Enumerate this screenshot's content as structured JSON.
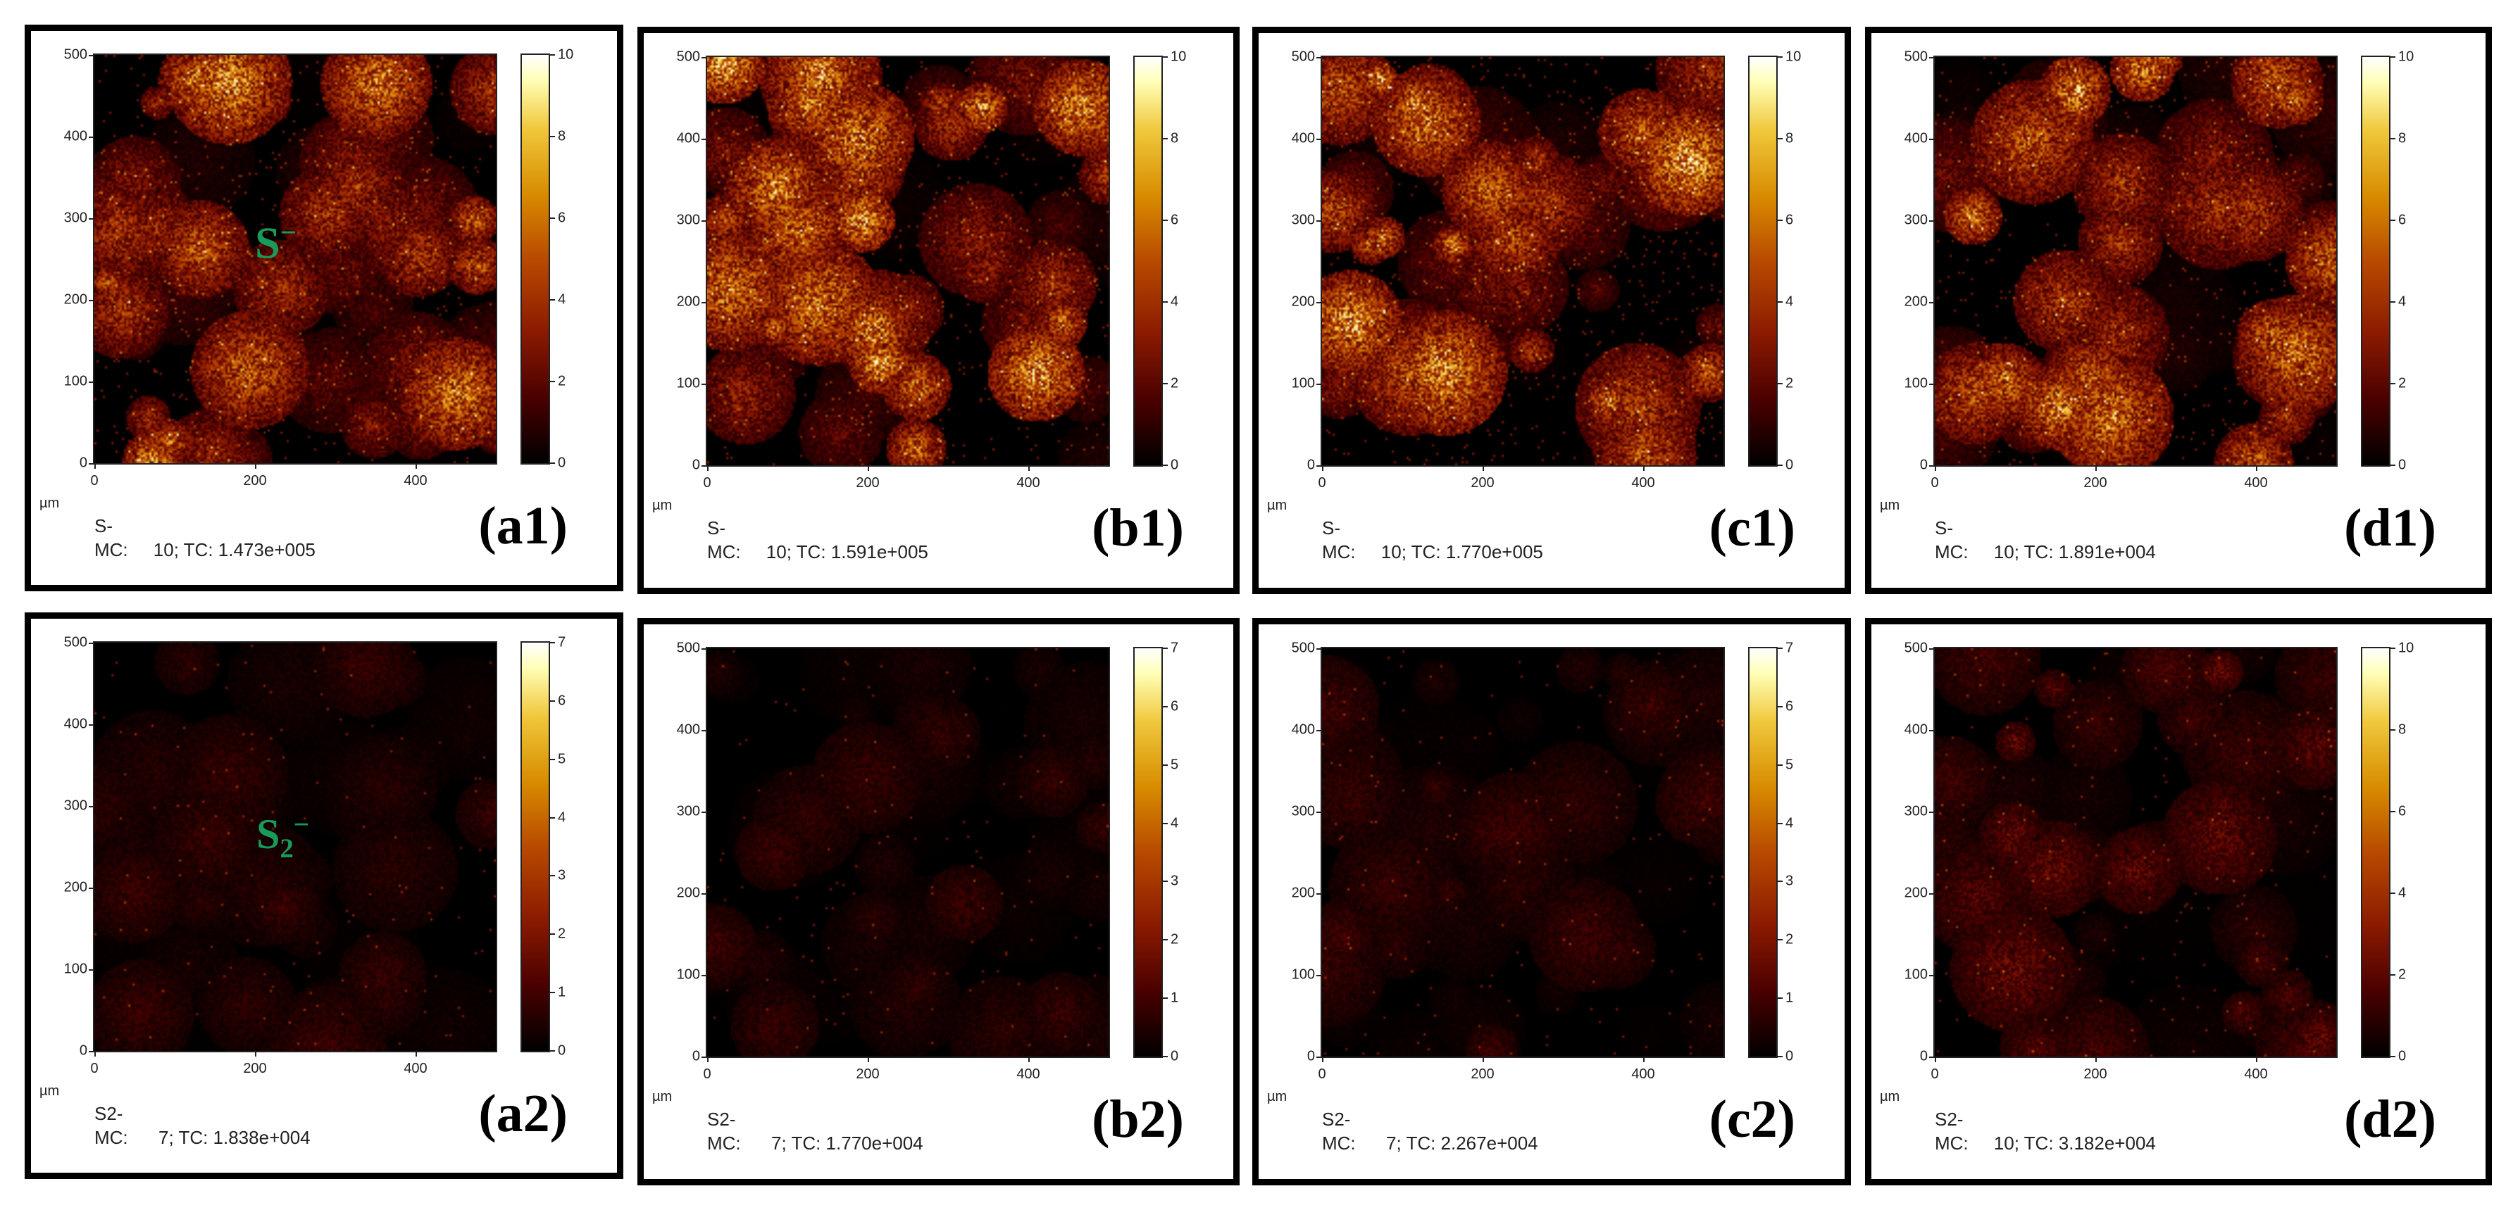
{
  "axis": {
    "unit": "µm",
    "ticks_y": [
      "0",
      "100",
      "200",
      "300",
      "400",
      "500"
    ],
    "ticks_x": [
      "0",
      "200",
      "400"
    ]
  },
  "ion_labels": {
    "a1": "S",
    "a1_sup": "−",
    "a2": "S",
    "a2_sub": "2",
    "a2_sup": "−"
  },
  "panels": [
    {
      "id": "a1",
      "label": "(a1)",
      "species": "S-",
      "mc": "MC:     10; TC: 1.473e+005",
      "colorbar_ticks": [
        "0",
        "2",
        "4",
        "6",
        "8",
        "10"
      ],
      "intensity": 0.55
    },
    {
      "id": "b1",
      "label": "(b1)",
      "species": "S-",
      "mc": "MC:     10; TC: 1.591e+005",
      "colorbar_ticks": [
        "0",
        "2",
        "4",
        "6",
        "8",
        "10"
      ],
      "intensity": 0.6
    },
    {
      "id": "c1",
      "label": "(c1)",
      "species": "S-",
      "mc": "MC:     10; TC: 1.770e+005",
      "colorbar_ticks": [
        "0",
        "2",
        "4",
        "6",
        "8",
        "10"
      ],
      "intensity": 0.62
    },
    {
      "id": "d1",
      "label": "(d1)",
      "species": "S-",
      "mc": "MC:     10; TC: 1.891e+004",
      "colorbar_ticks": [
        "0",
        "2",
        "4",
        "6",
        "8",
        "10"
      ],
      "intensity": 0.55
    },
    {
      "id": "a2",
      "label": "(a2)",
      "species": "S2-",
      "mc": "MC:      7; TC: 1.838e+004",
      "colorbar_ticks": [
        "0",
        "1",
        "2",
        "3",
        "4",
        "5",
        "6",
        "7"
      ],
      "intensity": 0.12
    },
    {
      "id": "b2",
      "label": "(b2)",
      "species": "S2-",
      "mc": "MC:      7; TC: 1.770e+004",
      "colorbar_ticks": [
        "0",
        "1",
        "2",
        "3",
        "4",
        "5",
        "6",
        "7"
      ],
      "intensity": 0.12
    },
    {
      "id": "c2",
      "label": "(c2)",
      "species": "S2-",
      "mc": "MC:      7; TC: 2.267e+004",
      "colorbar_ticks": [
        "0",
        "1",
        "2",
        "3",
        "4",
        "5",
        "6",
        "7"
      ],
      "intensity": 0.14
    },
    {
      "id": "d2",
      "label": "(d2)",
      "species": "S2-",
      "mc": "MC:     10; TC: 3.182e+004",
      "colorbar_ticks": [
        "0",
        "2",
        "4",
        "6",
        "8",
        "10"
      ],
      "intensity": 0.2
    }
  ]
}
